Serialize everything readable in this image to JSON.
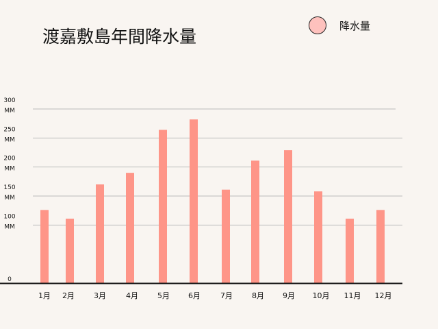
{
  "title": "渡嘉敷島年間降水量",
  "legend": {
    "label": "降水量",
    "color": "#fec1bd"
  },
  "chart_data": {
    "type": "bar",
    "title": "渡嘉敷島年間降水量",
    "xlabel": "",
    "ylabel": "",
    "categories": [
      "1月",
      "2月",
      "3月",
      "4月",
      "5月",
      "6月",
      "7月",
      "8月",
      "9月",
      "10月",
      "11月",
      "12月"
    ],
    "series": [
      {
        "name": "降水量",
        "values": [
          126,
          111,
          170,
          190,
          264,
          282,
          161,
          211,
          229,
          158,
          111,
          126
        ]
      }
    ],
    "ylim": [
      0,
      300
    ],
    "y_ticks": [
      {
        "value": 0,
        "lines": [
          "0"
        ]
      },
      {
        "value": 100,
        "lines": [
          "100",
          "MM"
        ]
      },
      {
        "value": 150,
        "lines": [
          "150",
          "MM"
        ]
      },
      {
        "value": 200,
        "lines": [
          "200",
          "MM"
        ]
      },
      {
        "value": 250,
        "lines": [
          "250",
          "MM"
        ]
      },
      {
        "value": 300,
        "lines": [
          "300",
          "MM"
        ]
      }
    ],
    "grid": true,
    "legend_position": "top-right",
    "bar_color": "#fe9588",
    "grid_color": "#bcbcbc",
    "axis_color": "#111111"
  }
}
